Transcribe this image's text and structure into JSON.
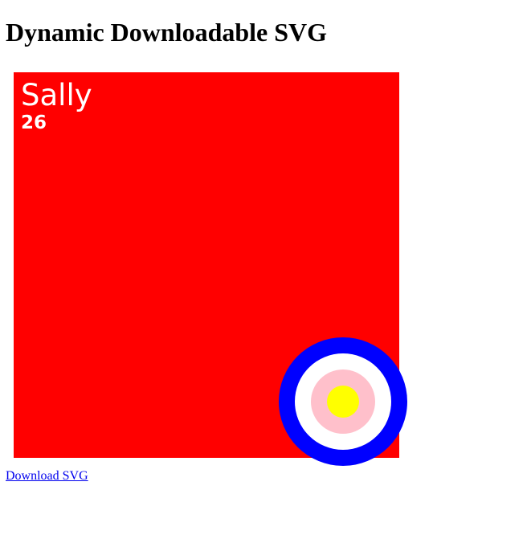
{
  "page": {
    "title": "Dynamic Downloadable SVG"
  },
  "card": {
    "name": "Sally",
    "age": "26",
    "background_color": "#ff0000",
    "text_color": "#ffffff"
  },
  "target": {
    "ring_colors": [
      "#0000ff",
      "#ffffff",
      "#ffc0cb",
      "#ffff00"
    ]
  },
  "download": {
    "label": "Download SVG"
  }
}
